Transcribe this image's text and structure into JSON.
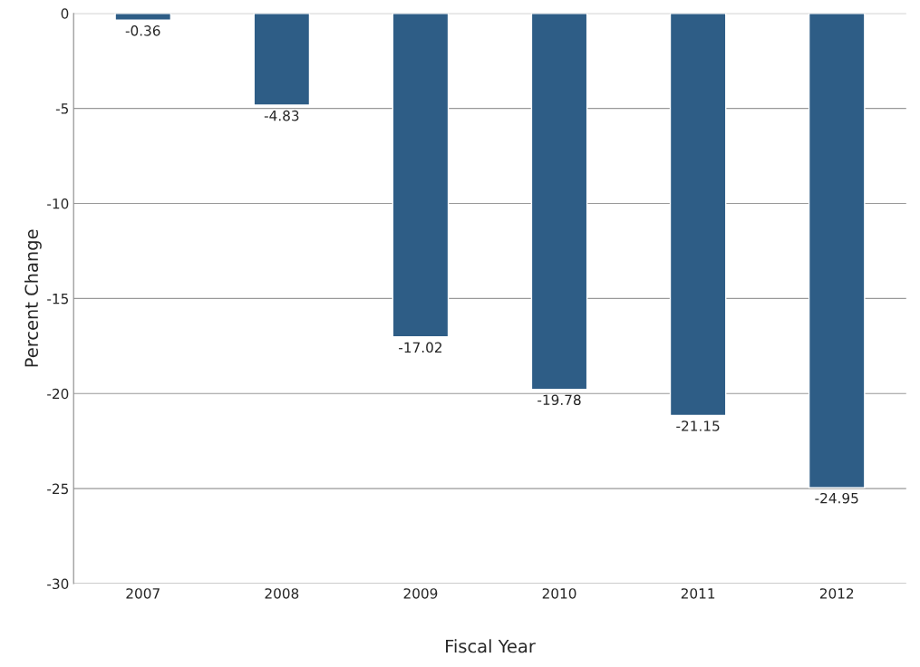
{
  "chart_data": {
    "type": "bar",
    "xlabel": "Fiscal Year",
    "ylabel": "Percent Change",
    "categories": [
      "2007",
      "2008",
      "2009",
      "2010",
      "2011",
      "2012"
    ],
    "values": [
      -0.36,
      -4.83,
      -17.02,
      -19.78,
      -21.15,
      -24.95
    ],
    "color": "#2e5d86",
    "ylim": [
      -30,
      0
    ],
    "yticks": [
      -30,
      -25,
      -20,
      -15,
      -10,
      -5,
      0
    ],
    "grid": "y",
    "data_labels": true
  }
}
